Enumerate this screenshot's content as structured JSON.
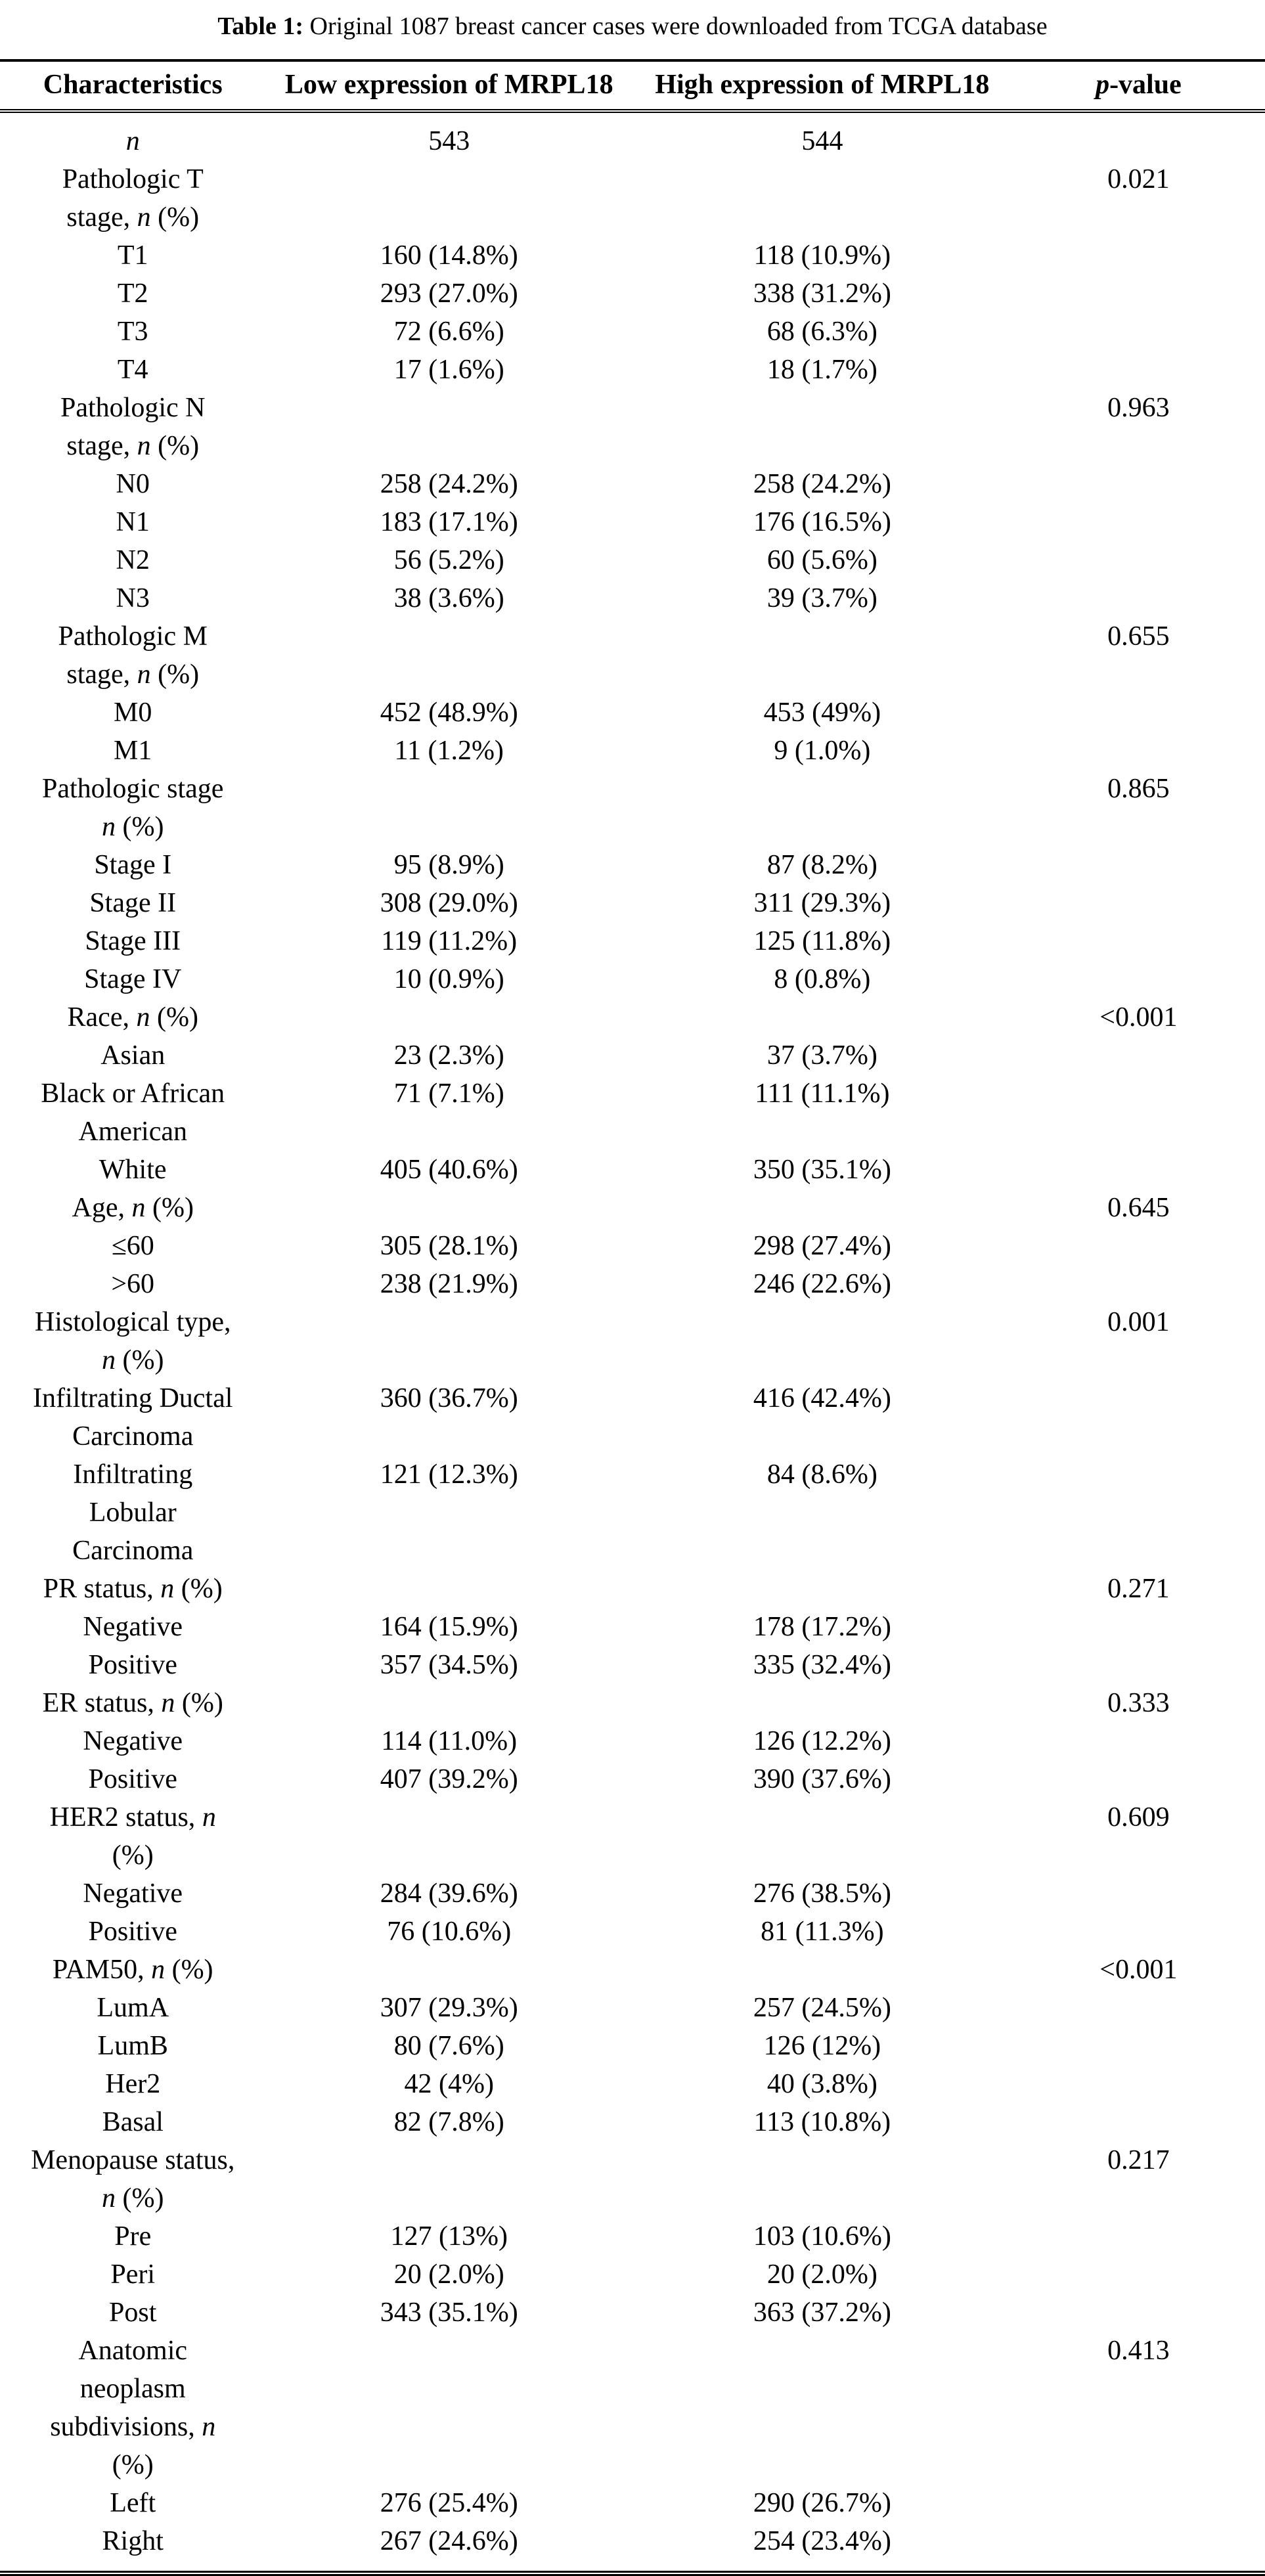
{
  "title": {
    "prefix": "Table 1:",
    "text": " Original 1087 breast cancer cases were downloaded from TCGA database"
  },
  "table": {
    "columns": [
      "Characteristics",
      "Low expression of MRPL18",
      "High expression of MRPL18",
      "p-value"
    ],
    "rows": [
      {
        "label": "n",
        "low": "543",
        "high": "544",
        "p": ""
      },
      {
        "label": [
          "Pathologic T",
          "stage, n (%)"
        ],
        "low": "",
        "high": "",
        "p": "0.021"
      },
      {
        "label": "T1",
        "low": "160 (14.8%)",
        "high": "118 (10.9%)",
        "p": ""
      },
      {
        "label": "T2",
        "low": "293 (27.0%)",
        "high": "338 (31.2%)",
        "p": ""
      },
      {
        "label": "T3",
        "low": "72 (6.6%)",
        "high": "68 (6.3%)",
        "p": ""
      },
      {
        "label": "T4",
        "low": "17 (1.6%)",
        "high": "18 (1.7%)",
        "p": ""
      },
      {
        "label": [
          "Pathologic N",
          "stage, n (%)"
        ],
        "low": "",
        "high": "",
        "p": "0.963"
      },
      {
        "label": "N0",
        "low": "258 (24.2%)",
        "high": "258 (24.2%)",
        "p": ""
      },
      {
        "label": "N1",
        "low": "183 (17.1%)",
        "high": "176 (16.5%)",
        "p": ""
      },
      {
        "label": "N2",
        "low": "56 (5.2%)",
        "high": "60 (5.6%)",
        "p": ""
      },
      {
        "label": "N3",
        "low": "38 (3.6%)",
        "high": "39 (3.7%)",
        "p": ""
      },
      {
        "label": [
          "Pathologic M",
          "stage, n (%)"
        ],
        "low": "",
        "high": "",
        "p": "0.655"
      },
      {
        "label": "M0",
        "low": "452 (48.9%)",
        "high": "453 (49%)",
        "p": ""
      },
      {
        "label": "M1",
        "low": "11 (1.2%)",
        "high": "9 (1.0%)",
        "p": ""
      },
      {
        "label": [
          "Pathologic stage",
          "n (%)"
        ],
        "low": "",
        "high": "",
        "p": "0.865"
      },
      {
        "label": "Stage I",
        "low": "95 (8.9%)",
        "high": "87 (8.2%)",
        "p": ""
      },
      {
        "label": "Stage II",
        "low": "308 (29.0%)",
        "high": "311 (29.3%)",
        "p": ""
      },
      {
        "label": "Stage III",
        "low": "119 (11.2%)",
        "high": "125 (11.8%)",
        "p": ""
      },
      {
        "label": "Stage IV",
        "low": "10 (0.9%)",
        "high": "8 (0.8%)",
        "p": ""
      },
      {
        "label": "Race, n (%)",
        "low": "",
        "high": "",
        "p": "<0.001"
      },
      {
        "label": "Asian",
        "low": "23 (2.3%)",
        "high": "37 (3.7%)",
        "p": ""
      },
      {
        "label": [
          "Black or African",
          "American"
        ],
        "low": "71 (7.1%)",
        "high": "111 (11.1%)",
        "p": ""
      },
      {
        "label": "White",
        "low": "405 (40.6%)",
        "high": "350 (35.1%)",
        "p": ""
      },
      {
        "label": "Age, n (%)",
        "low": "",
        "high": "",
        "p": "0.645"
      },
      {
        "label": "≤60",
        "low": "305 (28.1%)",
        "high": "298 (27.4%)",
        "p": ""
      },
      {
        "label": ">60",
        "low": "238 (21.9%)",
        "high": "246 (22.6%)",
        "p": ""
      },
      {
        "label": [
          "Histological type,",
          "n (%)"
        ],
        "low": "",
        "high": "",
        "p": "0.001"
      },
      {
        "label": [
          "Infiltrating Ductal",
          "Carcinoma"
        ],
        "low": "360 (36.7%)",
        "high": "416 (42.4%)",
        "p": ""
      },
      {
        "label": [
          "Infiltrating",
          "Lobular",
          "Carcinoma"
        ],
        "low": "121 (12.3%)",
        "high": "84 (8.6%)",
        "p": ""
      },
      {
        "label": "PR status, n (%)",
        "low": "",
        "high": "",
        "p": "0.271"
      },
      {
        "label": "Negative",
        "low": "164 (15.9%)",
        "high": "178 (17.2%)",
        "p": ""
      },
      {
        "label": "Positive",
        "low": "357 (34.5%)",
        "high": "335 (32.4%)",
        "p": ""
      },
      {
        "label": "ER status, n (%)",
        "low": "",
        "high": "",
        "p": "0.333"
      },
      {
        "label": "Negative",
        "low": "114 (11.0%)",
        "high": "126 (12.2%)",
        "p": ""
      },
      {
        "label": "Positive",
        "low": "407 (39.2%)",
        "high": "390 (37.6%)",
        "p": ""
      },
      {
        "label": [
          "HER2 status, n",
          "(%)"
        ],
        "low": "",
        "high": "",
        "p": "0.609"
      },
      {
        "label": "Negative",
        "low": "284 (39.6%)",
        "high": "276 (38.5%)",
        "p": ""
      },
      {
        "label": "Positive",
        "low": "76 (10.6%)",
        "high": "81 (11.3%)",
        "p": ""
      },
      {
        "label": "PAM50, n (%)",
        "low": "",
        "high": "",
        "p": "<0.001"
      },
      {
        "label": "LumA",
        "low": "307 (29.3%)",
        "high": "257 (24.5%)",
        "p": ""
      },
      {
        "label": "LumB",
        "low": "80 (7.6%)",
        "high": "126 (12%)",
        "p": ""
      },
      {
        "label": "Her2",
        "low": "42 (4%)",
        "high": "40 (3.8%)",
        "p": ""
      },
      {
        "label": "Basal",
        "low": "82 (7.8%)",
        "high": "113 (10.8%)",
        "p": ""
      },
      {
        "label": [
          "Menopause status,",
          "n (%)"
        ],
        "low": "",
        "high": "",
        "p": "0.217"
      },
      {
        "label": "Pre",
        "low": "127 (13%)",
        "high": "103 (10.6%)",
        "p": ""
      },
      {
        "label": "Peri",
        "low": "20 (2.0%)",
        "high": "20 (2.0%)",
        "p": ""
      },
      {
        "label": "Post",
        "low": "343 (35.1%)",
        "high": "363 (37.2%)",
        "p": ""
      },
      {
        "label": [
          "Anatomic",
          "neoplasm",
          "subdivisions, n",
          "(%)"
        ],
        "low": "",
        "high": "",
        "p": "0.413"
      },
      {
        "label": "Left",
        "low": "276 (25.4%)",
        "high": "290 (26.7%)",
        "p": ""
      },
      {
        "label": "Right",
        "low": "267 (24.6%)",
        "high": "254 (23.4%)",
        "p": ""
      }
    ]
  }
}
